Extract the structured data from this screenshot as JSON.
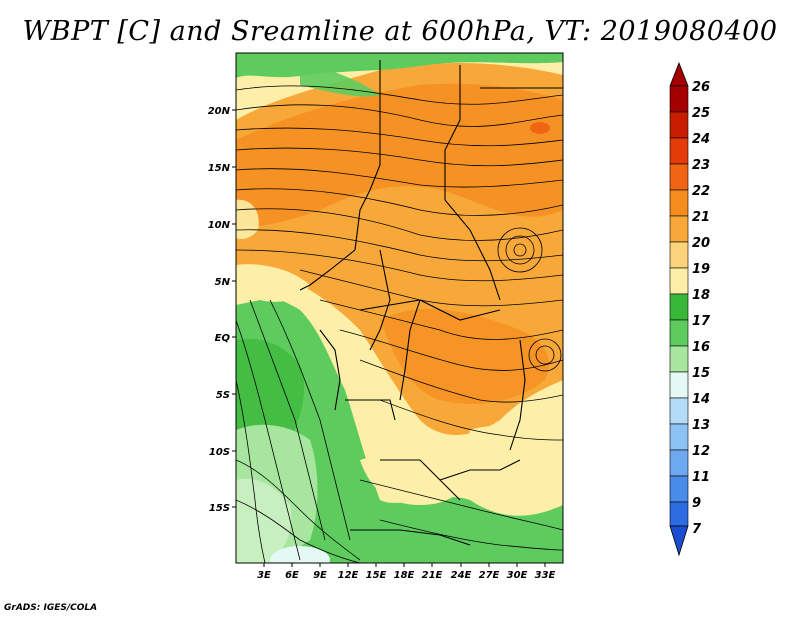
{
  "title": "WBPT [C] and Sreamline at 600hPa, VT: 2019080400",
  "footer": "GrADS: IGES/COLA",
  "map": {
    "lon_labels": [
      "3E",
      "6E",
      "9E",
      "12E",
      "15E",
      "18E",
      "21E",
      "24E",
      "27E",
      "30E",
      "33E"
    ],
    "lat_labels": [
      "20N",
      "15N",
      "10N",
      "5N",
      "EQ",
      "5S",
      "10S",
      "15S"
    ]
  },
  "colorbar": {
    "labels": [
      "26",
      "25",
      "24",
      "23",
      "22",
      "21",
      "20",
      "19",
      "18",
      "17",
      "16",
      "15",
      "14",
      "13",
      "12",
      "11",
      "9",
      "7"
    ],
    "colors": [
      "#a50000",
      "#c81e00",
      "#e33c0a",
      "#f06414",
      "#f58c1e",
      "#f8a838",
      "#fcd27a",
      "#fdeea8",
      "#39b739",
      "#5ecb5e",
      "#a8e6a0",
      "#e4f8f4",
      "#b4dcf8",
      "#8cc2f4",
      "#6ea8f0",
      "#4a8ae8",
      "#2c6ce0",
      "#1a4ed0"
    ]
  }
}
